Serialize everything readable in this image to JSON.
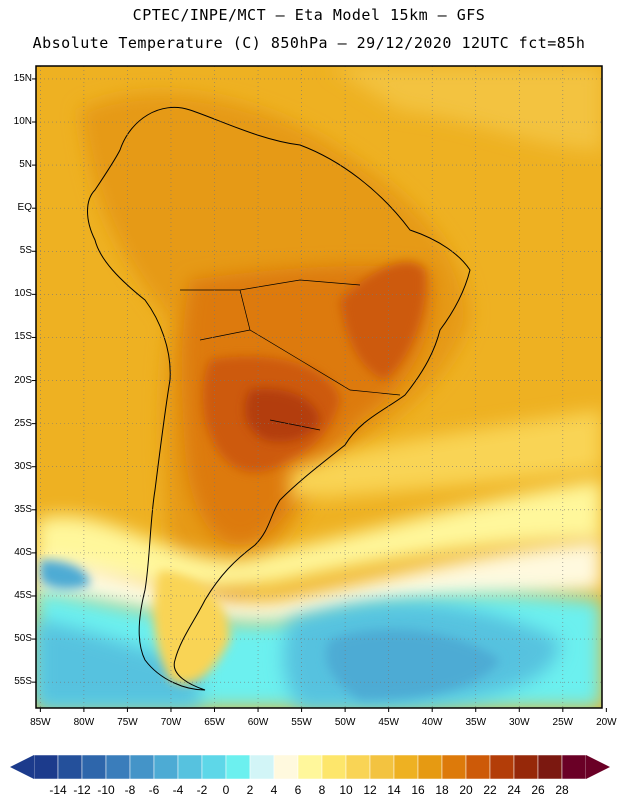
{
  "header": {
    "line1": "CPTEC/INPE/MCT –  Eta Model 15km – GFS",
    "line2": "Absolute Temperature (C) 850hPa – 29/12/2020 12UTC fct=85h"
  },
  "map": {
    "lat_labels": [
      "15N",
      "10N",
      "5N",
      "EQ",
      "5S",
      "10S",
      "15S",
      "20S",
      "25S",
      "30S",
      "35S",
      "40S",
      "45S",
      "50S",
      "55S"
    ],
    "lat_values": [
      15,
      10,
      5,
      0,
      -5,
      -10,
      -15,
      -20,
      -25,
      -30,
      -35,
      -40,
      -45,
      -50,
      -55
    ],
    "lon_labels": [
      "85W",
      "80W",
      "75W",
      "70W",
      "65W",
      "60W",
      "55W",
      "50W",
      "45W",
      "40W",
      "35W",
      "30W",
      "25W",
      "20W"
    ],
    "lon_values": [
      -85,
      -80,
      -75,
      -70,
      -65,
      -60,
      -55,
      -50,
      -45,
      -40,
      -35,
      -30,
      -25,
      -20
    ],
    "lat_range": [
      -58,
      16.5
    ],
    "lon_range": [
      -85.5,
      -20.5
    ]
  },
  "colorbar": {
    "labels": [
      "-14",
      "-12",
      "-10",
      "-8",
      "-6",
      "-4",
      "-2",
      "0",
      "2",
      "4",
      "6",
      "8",
      "10",
      "12",
      "14",
      "16",
      "18",
      "20",
      "22",
      "24",
      "26",
      "28"
    ],
    "colors": [
      "#1c3b8c",
      "#24509b",
      "#2e66ab",
      "#3a7dbb",
      "#4494c8",
      "#4dabd4",
      "#56c2df",
      "#5ed7e8",
      "#6cf0ef",
      "#d2f5f7",
      "#fff9de",
      "#fff79b",
      "#fde66b",
      "#f9d455",
      "#f3c340",
      "#eeb122",
      "#e69a12",
      "#dd7a0a",
      "#cd5a08",
      "#b33d08",
      "#962809",
      "#7b1810",
      "#6a0026"
    ]
  }
}
